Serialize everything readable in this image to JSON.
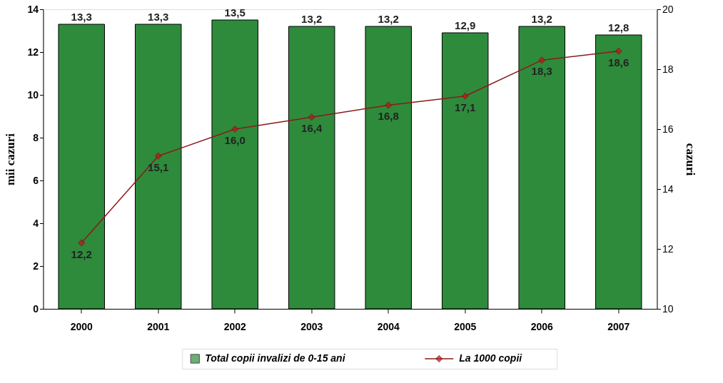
{
  "chart_data": {
    "type": "bar",
    "categories": [
      "2000",
      "2001",
      "2002",
      "2003",
      "2004",
      "2005",
      "2006",
      "2007"
    ],
    "ylabel": "mii cazuri",
    "y2label": "cazuri",
    "ylim": [
      0,
      14
    ],
    "yticks": [
      0,
      2,
      4,
      6,
      8,
      10,
      12,
      14
    ],
    "y2lim": [
      10,
      20
    ],
    "y2ticks": [
      10,
      12,
      14,
      16,
      18,
      20
    ],
    "grid": false,
    "legend": "bottom",
    "series": [
      {
        "name": "Total copii invalizi de 0-15 ani",
        "color": "#2e8b3c",
        "values": [
          13.3,
          13.3,
          13.5,
          13.2,
          13.2,
          12.9,
          13.2,
          12.8
        ],
        "value_labels": [
          "13,3",
          "13,3",
          "13,5",
          "13,2",
          "13,2",
          "12,9",
          "13,2",
          "12,8"
        ]
      },
      {
        "name": "La 1000 copii",
        "type": "line",
        "axis": "y2",
        "color": "#8b1a1a",
        "marker": "diamond",
        "values": [
          12.2,
          15.1,
          16.0,
          16.4,
          16.8,
          17.1,
          18.3,
          18.6
        ],
        "value_labels": [
          "12,2",
          "15,1",
          "16,0",
          "16,4",
          "16,8",
          "17,1",
          "18,3",
          "18,6"
        ]
      }
    ]
  }
}
